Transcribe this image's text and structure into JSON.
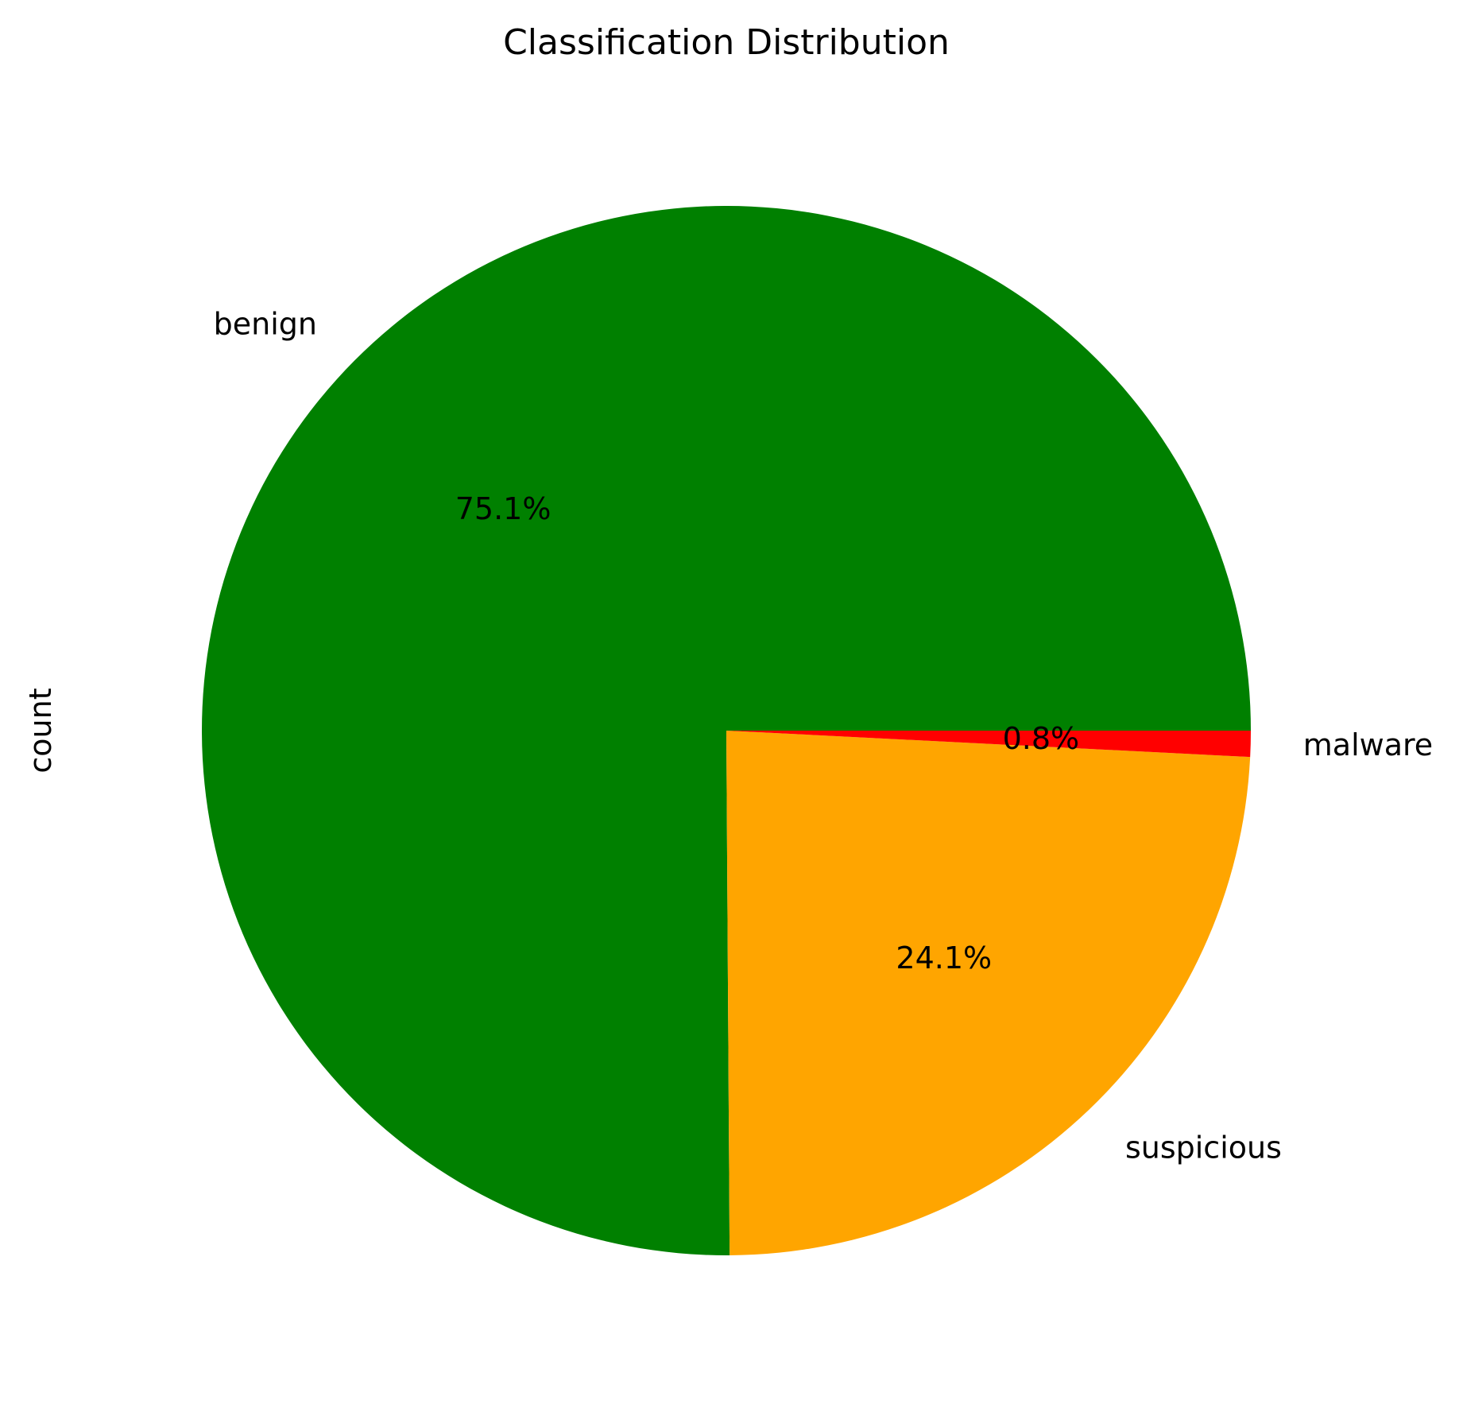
{
  "chart_data": {
    "type": "pie",
    "title": "Classification Distribution",
    "ylabel": "count",
    "categories": [
      "benign",
      "suspicious",
      "malware"
    ],
    "values": [
      75.1,
      24.1,
      0.8
    ],
    "percent_labels": [
      "75.1%",
      "24.1%",
      "0.8%"
    ],
    "colors": [
      "#008000",
      "#FFA500",
      "#FF0000"
    ],
    "start_angle": "0 (3 o'clock), counterclockwise",
    "legend": "none"
  }
}
